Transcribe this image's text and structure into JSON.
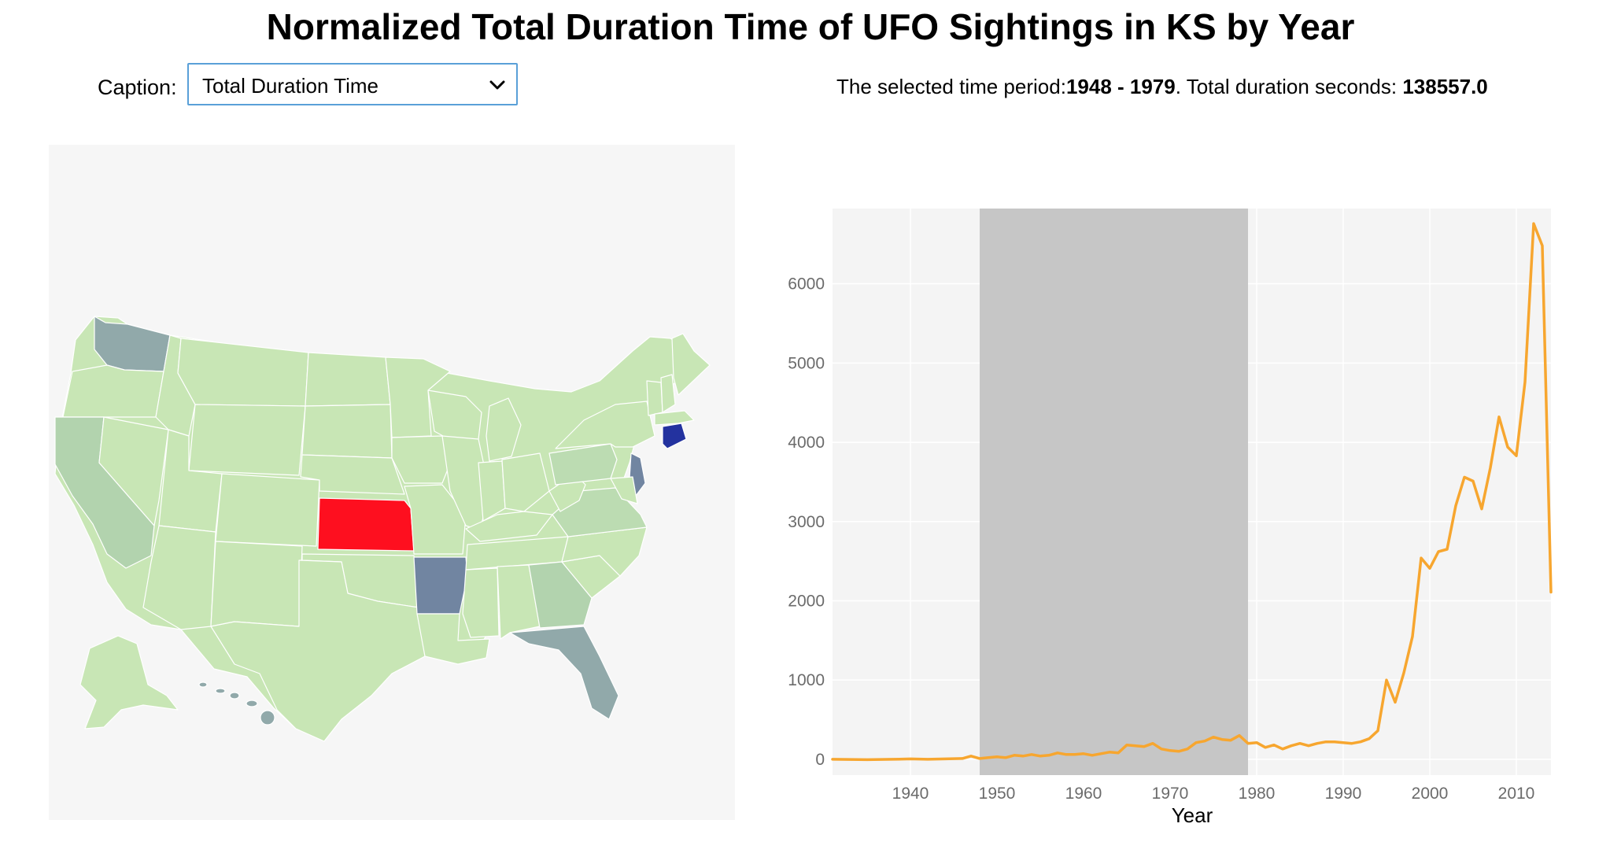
{
  "header": {
    "title": "Normalized Total Duration Time of UFO Sightings in KS by Year"
  },
  "controls": {
    "caption_label": "Caption:",
    "caption_selected": "Total Duration Time",
    "chevron_icon": "chevron-down-icon"
  },
  "period_info": {
    "prefix": "The selected time period:",
    "period": "1948 - 1979",
    "middle": ". Total duration seconds: ",
    "total": "138557.0"
  },
  "map": {
    "selected_state": "KS",
    "colors": {
      "selected": "#fe0f1f",
      "default": "#c8e6b5",
      "light": "#bcdcb2",
      "mid": "#b2d3ae",
      "grayish": "#91a9aa",
      "slate": "#7185a1",
      "dark": "#23329f"
    }
  },
  "chart_data": {
    "type": "line",
    "xlabel": "Year",
    "ylabel": "",
    "xlim": [
      1931,
      2014
    ],
    "ylim": [
      -200,
      6950
    ],
    "xticks": [
      1940,
      1950,
      1960,
      1970,
      1980,
      1990,
      2000,
      2010
    ],
    "yticks": [
      0,
      1000,
      2000,
      3000,
      4000,
      5000,
      6000
    ],
    "grid": true,
    "legend": "none",
    "highlight_range": [
      1948,
      1979
    ],
    "colors": {
      "line": "#f7a62f",
      "highlight": "#c6c6c6",
      "plot_bg": "#f4f4f4"
    },
    "x": [
      1931,
      1935,
      1938,
      1940,
      1942,
      1944,
      1946,
      1947,
      1948,
      1949,
      1950,
      1951,
      1952,
      1953,
      1954,
      1955,
      1956,
      1957,
      1958,
      1959,
      1960,
      1961,
      1962,
      1963,
      1964,
      1965,
      1966,
      1967,
      1968,
      1969,
      1970,
      1971,
      1972,
      1973,
      1974,
      1975,
      1976,
      1977,
      1978,
      1979,
      1980,
      1981,
      1982,
      1983,
      1984,
      1985,
      1986,
      1987,
      1988,
      1989,
      1990,
      1991,
      1992,
      1993,
      1994,
      1995,
      1996,
      1997,
      1998,
      1999,
      2000,
      2001,
      2002,
      2003,
      2004,
      2005,
      2006,
      2007,
      2008,
      2009,
      2010,
      2011,
      2012,
      2013,
      2014
    ],
    "y": [
      0,
      -5,
      0,
      5,
      0,
      5,
      10,
      40,
      10,
      20,
      30,
      20,
      50,
      40,
      60,
      40,
      50,
      80,
      60,
      60,
      70,
      50,
      70,
      90,
      80,
      180,
      170,
      160,
      200,
      130,
      110,
      100,
      130,
      210,
      230,
      280,
      250,
      240,
      300,
      200,
      210,
      150,
      180,
      130,
      170,
      200,
      170,
      200,
      220,
      220,
      210,
      200,
      220,
      260,
      360,
      1000,
      720,
      1090,
      1550,
      2540,
      2410,
      2620,
      2650,
      3200,
      3560,
      3510,
      3160,
      3680,
      4320,
      3940,
      3830,
      4760,
      6760,
      6480,
      2110
    ]
  }
}
